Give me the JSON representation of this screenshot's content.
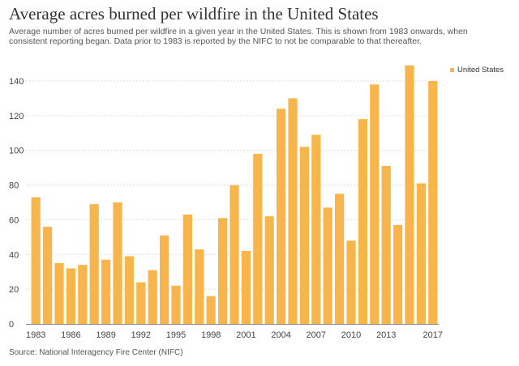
{
  "title": "Average acres burned per wildfire in the United States",
  "subtitle": "Average number of acres burned per wildfire in a given year in the United States. This is shown from 1983 onwards, when consistent reporting began. Data prior to 1983 is reported by the NIFC to not be comparable to that thereafter.",
  "source": "Source: National Interagency Fire Center (NIFC)",
  "colors": {
    "bar": "#F8B54B",
    "grid": "#DDDDDD",
    "axis": "#888888"
  },
  "chart_data": {
    "type": "bar",
    "categories": [
      1983,
      1984,
      1985,
      1986,
      1987,
      1988,
      1989,
      1990,
      1991,
      1992,
      1993,
      1994,
      1995,
      1996,
      1997,
      1998,
      1999,
      2000,
      2001,
      2002,
      2003,
      2004,
      2005,
      2006,
      2007,
      2008,
      2009,
      2010,
      2011,
      2012,
      2013,
      2014,
      2015,
      2016,
      2017
    ],
    "x_tick_labels": [
      "1983",
      "1986",
      "1989",
      "1992",
      "1995",
      "1998",
      "2001",
      "2004",
      "2007",
      "2010",
      "2013",
      "2017"
    ],
    "series": [
      {
        "name": "United States",
        "values": [
          73,
          56,
          35,
          32,
          34,
          69,
          37,
          70,
          39,
          24,
          31,
          51,
          22,
          63,
          43,
          16,
          61,
          80,
          42,
          98,
          62,
          124,
          130,
          102,
          109,
          67,
          75,
          48,
          118,
          138,
          91,
          57,
          149,
          81,
          140
        ]
      }
    ],
    "y_ticks": [
      0,
      20,
      40,
      60,
      80,
      100,
      120,
      140
    ],
    "ylim": [
      0,
      150
    ],
    "legend_position": "top-right",
    "grid": true
  }
}
